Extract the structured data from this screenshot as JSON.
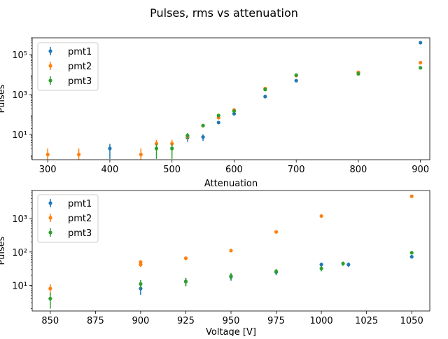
{
  "figure": {
    "suptitle": "Pulses, rms vs attenuation"
  },
  "colors": {
    "pmt1": "#1f77b4",
    "pmt2": "#ff7f0e",
    "pmt3": "#2ca02c"
  },
  "chart_data": [
    {
      "type": "scatter",
      "errorbars": true,
      "xlabel": "Attenuation",
      "ylabel": "Pulses",
      "yscale": "log",
      "xlim": [
        275,
        915
      ],
      "ylim": [
        0.55,
        700000
      ],
      "xticks": [
        300,
        400,
        500,
        600,
        700,
        800,
        900
      ],
      "xtick_labels": [
        "300",
        "400",
        "500",
        "600",
        "700",
        "800",
        "900"
      ],
      "yticks": [
        10,
        1000,
        100000
      ],
      "ytick_labels": [
        "10¹",
        "10³",
        "10⁵"
      ],
      "legend": "top-left",
      "grid": false,
      "series": [
        {
          "name": "pmt1",
          "color": "#1f77b4",
          "points": [
            {
              "x": 400,
              "y": 2,
              "err": 1.4
            },
            {
              "x": 525,
              "y": 7,
              "err": 2.6
            },
            {
              "x": 550,
              "y": 7.5,
              "err": 2.7
            },
            {
              "x": 575,
              "y": 40,
              "err": 6
            },
            {
              "x": 600,
              "y": 110,
              "err": 10
            },
            {
              "x": 650,
              "y": 800,
              "err": 28
            },
            {
              "x": 700,
              "y": 5000,
              "err": 70
            },
            {
              "x": 800,
              "y": 13000,
              "err": 110
            },
            {
              "x": 900,
              "y": 400000,
              "err": 630
            }
          ]
        },
        {
          "name": "pmt2",
          "color": "#ff7f0e",
          "points": [
            {
              "x": 300,
              "y": 1,
              "err": 1
            },
            {
              "x": 350,
              "y": 1,
              "err": 1
            },
            {
              "x": 450,
              "y": 1,
              "err": 1
            },
            {
              "x": 475,
              "y": 3.5,
              "err": 1.9
            },
            {
              "x": 500,
              "y": 3.5,
              "err": 1.9
            },
            {
              "x": 525,
              "y": 8,
              "err": 2.8
            },
            {
              "x": 550,
              "y": 28,
              "err": 5
            },
            {
              "x": 575,
              "y": 70,
              "err": 8
            },
            {
              "x": 600,
              "y": 170,
              "err": 13
            },
            {
              "x": 650,
              "y": 2000,
              "err": 45
            },
            {
              "x": 700,
              "y": 9000,
              "err": 95
            },
            {
              "x": 800,
              "y": 13000,
              "err": 110
            },
            {
              "x": 900,
              "y": 40000,
              "err": 200
            }
          ]
        },
        {
          "name": "pmt3",
          "color": "#2ca02c",
          "points": [
            {
              "x": 475,
              "y": 2,
              "err": 1.4
            },
            {
              "x": 500,
              "y": 2,
              "err": 1.4
            },
            {
              "x": 525,
              "y": 9,
              "err": 3
            },
            {
              "x": 550,
              "y": 28,
              "err": 5
            },
            {
              "x": 575,
              "y": 90,
              "err": 9
            },
            {
              "x": 600,
              "y": 150,
              "err": 12
            },
            {
              "x": 650,
              "y": 1800,
              "err": 42
            },
            {
              "x": 700,
              "y": 9500,
              "err": 97
            },
            {
              "x": 800,
              "y": 11000,
              "err": 105
            },
            {
              "x": 900,
              "y": 22000,
              "err": 150
            }
          ]
        }
      ]
    },
    {
      "type": "scatter",
      "errorbars": true,
      "xlabel": "Voltage [V]",
      "ylabel": "Pulses",
      "yscale": "log",
      "xlim": [
        840,
        1060
      ],
      "ylim": [
        1.7,
        7000
      ],
      "xticks": [
        850,
        875,
        900,
        925,
        950,
        975,
        1000,
        1025,
        1050
      ],
      "xtick_labels": [
        "850",
        "875",
        "900",
        "925",
        "950",
        "975",
        "1000",
        "1025",
        "1050"
      ],
      "yticks": [
        10,
        100,
        1000
      ],
      "ytick_labels": [
        "10¹",
        "10²",
        "10³"
      ],
      "legend": "top-left",
      "grid": false,
      "series": [
        {
          "name": "pmt1",
          "color": "#1f77b4",
          "points": [
            {
              "x": 900,
              "y": 8,
              "err": 2.8
            },
            {
              "x": 925,
              "y": 13,
              "err": 3.6
            },
            {
              "x": 950,
              "y": 18,
              "err": 4.2
            },
            {
              "x": 975,
              "y": 25,
              "err": 5
            },
            {
              "x": 1000,
              "y": 42,
              "err": 6.5
            },
            {
              "x": 1015,
              "y": 42,
              "err": 6.5
            },
            {
              "x": 1050,
              "y": 72,
              "err": 8.5
            }
          ]
        },
        {
          "name": "pmt2",
          "color": "#ff7f0e",
          "points": [
            {
              "x": 850,
              "y": 8,
              "err": 2.8
            },
            {
              "x": 900,
              "y": 50,
              "err": 7
            },
            {
              "x": 900,
              "y": 42,
              "err": 6.5
            },
            {
              "x": 925,
              "y": 65,
              "err": 8
            },
            {
              "x": 950,
              "y": 110,
              "err": 10.5
            },
            {
              "x": 975,
              "y": 400,
              "err": 20
            },
            {
              "x": 1000,
              "y": 1200,
              "err": 35
            },
            {
              "x": 1050,
              "y": 4700,
              "err": 69
            }
          ]
        },
        {
          "name": "pmt3",
          "color": "#2ca02c",
          "points": [
            {
              "x": 850,
              "y": 4,
              "err": 2
            },
            {
              "x": 900,
              "y": 11,
              "err": 3.3
            },
            {
              "x": 925,
              "y": 13,
              "err": 3.6
            },
            {
              "x": 950,
              "y": 19,
              "err": 4.4
            },
            {
              "x": 975,
              "y": 26,
              "err": 5.1
            },
            {
              "x": 1000,
              "y": 32,
              "err": 5.7
            },
            {
              "x": 1012,
              "y": 45,
              "err": 6.7
            },
            {
              "x": 1050,
              "y": 95,
              "err": 9.7
            }
          ]
        }
      ]
    }
  ]
}
